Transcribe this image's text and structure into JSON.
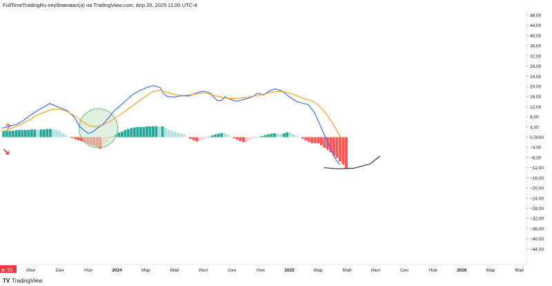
{
  "header": {
    "publisher_line": "FullTimeTradingRu опубликовал(а) на TradingView.com, Апр 20, 2025 11:00 UTC-4"
  },
  "footer": {
    "logo_mark": "TV",
    "brand": "TradingView"
  },
  "annotations": {
    "question_mark": "?",
    "arrow": "↘",
    "start_label": "ю '23"
  },
  "colors": {
    "macd_line": "#2962ff",
    "signal_line": "#ff9800",
    "hist_pos_strong": "#26a69a",
    "hist_pos_weak": "#b2dfdb",
    "hist_neg_strong": "#ff5252",
    "hist_neg_weak": "#ffcdd2",
    "circle_fill": "#c8e6c9",
    "circle_stroke": "#66bb6a",
    "annotation_red": "#f23645"
  },
  "chart_data": {
    "type": "line",
    "grid": false,
    "ylim": [
      -48,
      48
    ],
    "y_ticks": [
      "48,00",
      "44,00",
      "40,00",
      "36,00",
      "32,00",
      "28,00",
      "24,00",
      "20,00",
      "16,00",
      "12,00",
      "8,00",
      "4,00",
      "0,0000",
      "−4,00",
      "−8,00",
      "−12,00",
      "−16,00",
      "−20,00",
      "−24,00",
      "−28,00",
      "−32,00",
      "−36,00",
      "−40,00",
      "−44,00"
    ],
    "y_tick_values": [
      48,
      44,
      40,
      36,
      32,
      28,
      24,
      20,
      16,
      12,
      8,
      4,
      0,
      -4,
      -8,
      -12,
      -16,
      -20,
      -24,
      -28,
      -32,
      -36,
      -40,
      -44
    ],
    "x_ticks": [
      {
        "label": "Июл",
        "x": 2
      },
      {
        "label": "Сен",
        "x": 4
      },
      {
        "label": "Ноя",
        "x": 6
      },
      {
        "label": "2024",
        "x": 8,
        "bold": true
      },
      {
        "label": "Мар",
        "x": 10
      },
      {
        "label": "Май",
        "x": 12
      },
      {
        "label": "Июл",
        "x": 14
      },
      {
        "label": "Сен",
        "x": 16
      },
      {
        "label": "Ноя",
        "x": 18
      },
      {
        "label": "2025",
        "x": 20,
        "bold": true
      },
      {
        "label": "Мар",
        "x": 22
      },
      {
        "label": "Май",
        "x": 24
      },
      {
        "label": "Июл",
        "x": 26
      },
      {
        "label": "Сен",
        "x": 28
      },
      {
        "label": "Ноя",
        "x": 30
      },
      {
        "label": "2026",
        "x": 32,
        "bold": true
      },
      {
        "label": "Мар",
        "x": 34
      },
      {
        "label": "Май",
        "x": 36
      }
    ],
    "xlim": [
      -0.15,
      36.5
    ],
    "series": [
      {
        "key": "macd",
        "points": [
          [
            0,
            3.5
          ],
          [
            0.5,
            4.3
          ],
          [
            1,
            5
          ],
          [
            1.5,
            6.6
          ],
          [
            2,
            8.8
          ],
          [
            2.5,
            10.6
          ],
          [
            3,
            12.2
          ],
          [
            3.3,
            13.2
          ],
          [
            3.6,
            12.6
          ],
          [
            4,
            11.6
          ],
          [
            4.5,
            10.5
          ],
          [
            5,
            8
          ],
          [
            5.4,
            4.2
          ],
          [
            5.7,
            2.6
          ],
          [
            6,
            1.5
          ],
          [
            6.3,
            2
          ],
          [
            6.6,
            3.4
          ],
          [
            7,
            5
          ],
          [
            7.4,
            7.5
          ],
          [
            7.8,
            10.4
          ],
          [
            8.2,
            12.3
          ],
          [
            8.6,
            14.3
          ],
          [
            9,
            16.4
          ],
          [
            9.5,
            18.1
          ],
          [
            10,
            19.4
          ],
          [
            10.5,
            20.3
          ],
          [
            11,
            19.5
          ],
          [
            11.2,
            17.3
          ],
          [
            11.5,
            16
          ],
          [
            12,
            15.8
          ],
          [
            12.5,
            16.3
          ],
          [
            13,
            16.2
          ],
          [
            13.5,
            17.3
          ],
          [
            14,
            18.1
          ],
          [
            14.5,
            17.3
          ],
          [
            14.8,
            15.3
          ],
          [
            15,
            14.3
          ],
          [
            15.3,
            14.5
          ],
          [
            15.5,
            15.9
          ],
          [
            16,
            14.6
          ],
          [
            16.3,
            14.2
          ],
          [
            16.6,
            14.5
          ],
          [
            17,
            15.1
          ],
          [
            17.4,
            15.8
          ],
          [
            17.8,
            17.3
          ],
          [
            18.2,
            16.6
          ],
          [
            18.6,
            18.1
          ],
          [
            19,
            19
          ],
          [
            19.5,
            18.1
          ],
          [
            20,
            15.8
          ],
          [
            20.5,
            14
          ],
          [
            21,
            13.2
          ],
          [
            21.3,
            12.8
          ],
          [
            21.7,
            10
          ],
          [
            22,
            6.5
          ],
          [
            22.3,
            2.5
          ],
          [
            22.6,
            -1
          ],
          [
            22.9,
            -5
          ],
          [
            23.2,
            -8.6
          ],
          [
            23.5,
            -10.8
          ]
        ]
      },
      {
        "key": "signal",
        "points": [
          [
            0,
            2
          ],
          [
            0.5,
            3.2
          ],
          [
            1,
            4.3
          ],
          [
            1.5,
            5.6
          ],
          [
            2,
            7.2
          ],
          [
            2.5,
            8.8
          ],
          [
            3,
            10
          ],
          [
            3.5,
            10.9
          ],
          [
            4,
            11
          ],
          [
            4.5,
            10.2
          ],
          [
            5,
            8.5
          ],
          [
            5.5,
            6.5
          ],
          [
            6,
            4.6
          ],
          [
            6.5,
            4
          ],
          [
            7,
            4.8
          ],
          [
            7.5,
            6.2
          ],
          [
            8,
            8
          ],
          [
            8.5,
            10
          ],
          [
            9,
            12
          ],
          [
            9.5,
            14.1
          ],
          [
            10,
            16.1
          ],
          [
            10.5,
            18
          ],
          [
            11,
            18.4
          ],
          [
            11.5,
            17.6
          ],
          [
            12,
            16.8
          ],
          [
            12.5,
            16.4
          ],
          [
            13,
            16.6
          ],
          [
            13.5,
            17
          ],
          [
            14,
            17.4
          ],
          [
            14.5,
            16.9
          ],
          [
            15,
            16
          ],
          [
            15.5,
            15.4
          ],
          [
            16,
            15.2
          ],
          [
            16.5,
            15.3
          ],
          [
            17,
            15.6
          ],
          [
            17.5,
            16.1
          ],
          [
            18,
            16.6
          ],
          [
            18.5,
            17.3
          ],
          [
            19,
            17.9
          ],
          [
            19.5,
            18
          ],
          [
            20,
            17.3
          ],
          [
            20.5,
            16.3
          ],
          [
            21,
            15.2
          ],
          [
            21.5,
            14.4
          ],
          [
            22,
            12.7
          ],
          [
            22.5,
            9.6
          ],
          [
            23,
            5.5
          ],
          [
            23.5,
            0.5
          ],
          [
            23.7,
            -1.5
          ]
        ]
      }
    ],
    "histogram": [
      2.5,
      2.5,
      2.5,
      2.5,
      2.7,
      2.8,
      2.8,
      2.8,
      2.8,
      3,
      3,
      2.8,
      3,
      3,
      3.2,
      3.2,
      3,
      2.8,
      2.4,
      1.5,
      0.8,
      0,
      -0.4,
      -0.8,
      -1.2,
      -1.6,
      -2,
      -2.5,
      -3,
      -3.4,
      -3.8,
      -4.6,
      -3,
      -1.8,
      -0.5,
      0.3,
      1,
      1.8,
      2.2,
      2.8,
      3.2,
      3.6,
      3.8,
      4,
      4,
      4,
      4.2,
      4.2,
      4.3,
      4.3,
      4.2,
      4.2,
      3.6,
      3,
      2.5,
      2.2,
      1.8,
      1.4,
      1.1,
      0,
      -0.7,
      -1.3,
      -1.7,
      -1.5,
      -1,
      -0.6,
      0.1,
      0.7,
      1.1,
      1.4,
      1.6,
      1.5,
      0.9,
      0.2,
      -0.5,
      -1,
      -1.6,
      -2,
      -1.8,
      -1.2,
      -0.6,
      0,
      0,
      0.4,
      0.8,
      1.1,
      1.4,
      1.5,
      1.4,
      1.2,
      1.5,
      1.9,
      1.8,
      1.2,
      0.6,
      0,
      -0.6,
      -1.2,
      -1.8,
      -2.4,
      -2.4,
      -2.4,
      -3.2,
      -4.2,
      -5,
      -6,
      -7.2,
      -8.2,
      -9.6,
      -10.8,
      -12.4
    ],
    "histogram_start_x": 0.1,
    "histogram_step": 0.2169,
    "highlight_circle": {
      "x": 6.7,
      "y": 3.5
    },
    "bottom_arc": [
      [
        22.4,
        -12
      ],
      [
        23.4,
        -12.5
      ],
      [
        24.5,
        -12.2
      ],
      [
        25.6,
        -10.6
      ],
      [
        26.3,
        -7.5
      ]
    ]
  }
}
